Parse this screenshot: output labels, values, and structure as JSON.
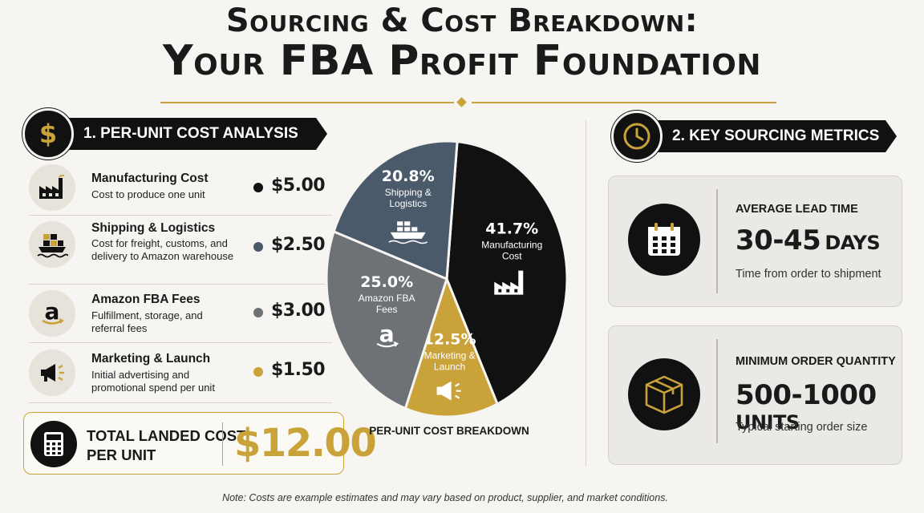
{
  "title": {
    "line1": "Sourcing & Cost Breakdown:",
    "line2": "Your FBA Profit Foundation"
  },
  "section1": {
    "label": "1. PER-UNIT COST ANALYSIS",
    "icon": "dollar-icon"
  },
  "section2": {
    "label": "2. KEY SOURCING METRICS",
    "icon": "clock-icon"
  },
  "cost_items": [
    {
      "name": "Manufacturing Cost",
      "desc": "Cost to produce one unit",
      "price": "$5.00",
      "icon": "factory-icon",
      "color": "#111111"
    },
    {
      "name": "Shipping & Logistics",
      "desc": "Cost for freight, customs, and delivery to Amazon warehouse",
      "price": "$2.50",
      "icon": "cargo-ship-icon",
      "color": "#4a5a6b"
    },
    {
      "name": "Amazon FBA Fees",
      "desc": "Fulfillment, storage, and referral fees",
      "price": "$3.00",
      "icon": "amazon-icon",
      "color": "#6e7276"
    },
    {
      "name": "Marketing & Launch",
      "desc": "Initial advertising and promotional spend per unit",
      "price": "$1.50",
      "icon": "megaphone-icon",
      "color": "#c9a33a"
    }
  ],
  "total": {
    "label_line1": "TOTAL LANDED COST",
    "label_line2": "PER UNIT",
    "amount": "$12.00",
    "icon": "calculator-icon"
  },
  "chart_data": {
    "type": "pie",
    "title": "PER-UNIT COST BREAKDOWN",
    "slices": [
      {
        "label": "Manufacturing Cost",
        "value": 41.7,
        "display": "41.7%",
        "color": "#111111",
        "icon": "factory-icon"
      },
      {
        "label": "Marketing & Launch",
        "value": 12.5,
        "display": "12.5%",
        "color": "#c9a33a",
        "icon": "megaphone-icon"
      },
      {
        "label": "Amazon FBA Fees",
        "value": 25.0,
        "display": "25.0%",
        "color": "#6e7276",
        "icon": "amazon-icon"
      },
      {
        "label": "Shipping & Logistics",
        "value": 20.8,
        "display": "20.8%",
        "color": "#4a5a6b",
        "icon": "cargo-ship-icon"
      }
    ],
    "slice_label_lines": {
      "Manufacturing Cost": [
        "Manufacturing",
        "Cost"
      ],
      "Marketing & Launch": [
        "Marketing &",
        "Launch"
      ],
      "Amazon FBA Fees": [
        "Amazon FBA",
        "Fees"
      ],
      "Shipping & Logistics": [
        "Shipping &",
        "Logistics"
      ]
    }
  },
  "metrics": [
    {
      "title": "AVERAGE LEAD TIME",
      "value_num": "30-45",
      "value_unit": "DAYS",
      "desc": "Time from order to shipment",
      "icon": "calendar-icon"
    },
    {
      "title": "MINIMUM ORDER QUANTITY",
      "value_num": "500-1000",
      "value_unit": "UNITS",
      "desc": "Typical starting order size",
      "icon": "box-icon"
    }
  ],
  "note": "Note: Costs are example estimates and may vary based on product, supplier, and market conditions."
}
